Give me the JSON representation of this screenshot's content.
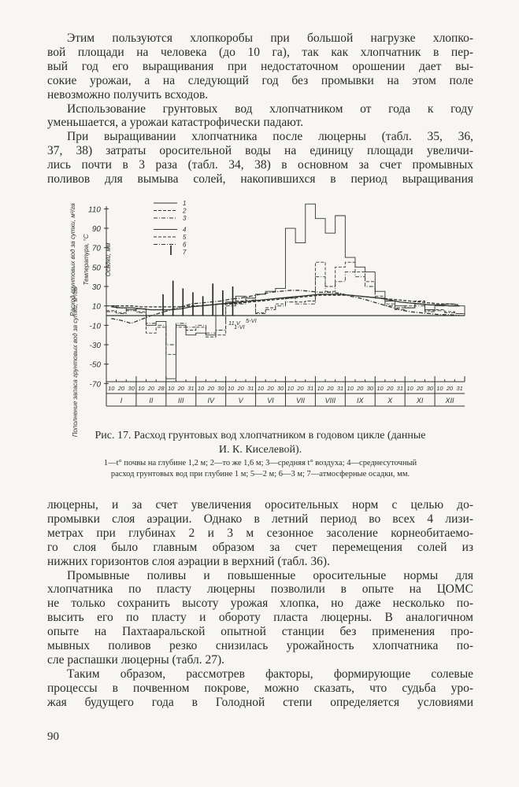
{
  "top_text": [
    {
      "t": "Этим пользуются хлопкоробы при большой  нагрузке хлопко-",
      "ind": true
    },
    {
      "t": "вой площади на человека (до 10 га), так как хлопчатник в пер-"
    },
    {
      "t": "вый год его выращивания при недостаточном орошении дает вы-"
    },
    {
      "t": "сокие урожаи, а на следующий год без промывки на этом  поле"
    },
    {
      "t": "невозможно получить всходов.",
      "last": true
    },
    {
      "t": "Использование грунтовых вод хлопчатником от года к году",
      "ind": true
    },
    {
      "t": "уменьшается, а урожаи катастрофически падают.",
      "last": true
    },
    {
      "t": "При выращивании хлопчатника после люцерны (табл. 35, 36,",
      "ind": true
    },
    {
      "t": "37, 38) затраты оросительной воды на единицу площади увеличи-"
    },
    {
      "t": "лись почти в 3 раза (табл. 34, 38) в основном за счет промывных"
    },
    {
      "t": "поливов для вымыва солей, накопившихся в период выращивания"
    }
  ],
  "bottom_text": [
    {
      "t": "люцерны, и за счет увеличения оросительных норм с целью  до-"
    },
    {
      "t": "промывки слоя аэрации. Однако в летний период во всех 4 лизи-"
    },
    {
      "t": "метрах при глубинах 2 и 3 м сезонное засоление корнеобитаемо-"
    },
    {
      "t": "го слоя было главным образом за счет перемещения солей  из"
    },
    {
      "t": "нижних горизонтов слоя аэрации в верхний (табл. 36).",
      "last": true
    },
    {
      "t": "Промывные поливы и повышенные оросительные нормы для",
      "ind": true
    },
    {
      "t": "хлопчатника по пласту люцерны позволили в опыте на ЦОМС"
    },
    {
      "t": "не только сохранить высоту урожая хлопка, но даже несколько по-"
    },
    {
      "t": "высить его по пласту и обороту пласта люцерны. В аналогичном"
    },
    {
      "t": "опыте на Пахтааральской опытной станции без применения про-"
    },
    {
      "t": "мывных поливов резко снизилась урожайность хлопчатника по-"
    },
    {
      "t": "сле распашки люцерны (табл. 27).",
      "last": true
    },
    {
      "t": "Таким образом, рассмотрев факторы, формирующие солевые",
      "ind": true
    },
    {
      "t": "процессы в почвенном покрове, можно сказать, что судьба уро-"
    },
    {
      "t": "жая будущего года в Голодной степи определяется   условиями"
    }
  ],
  "caption": {
    "title1": "Рис. 17. Расход грунтовых вод хлопчатником в годовом  цикле (данные",
    "title2": "И. К. Киселевой).",
    "legend1": "1—t° почвы на глубине 1,2 м; 2—то же 1,6 м; 3—средняя t° воздуха; 4—среднесуточный",
    "legend2": "расход грунтовых  вод при глубине 1  м; 5—2 м; 6—3 м; 7—атмосферные осадки, мм."
  },
  "page_number": "90",
  "chart_data": {
    "type": "line",
    "ylabels": [
      "Расход грунтовых вод за сутки, м³/га",
      "Температура, °C",
      "Осадки, мм",
      "Пополнение запаса грунтовых вод за сутки, м³/га"
    ],
    "yticks": [
      110,
      90,
      70,
      50,
      30,
      10,
      -10,
      -30,
      -50,
      -70
    ],
    "ylim": [
      -70,
      120
    ],
    "months": [
      "I",
      "II",
      "III",
      "IV",
      "V",
      "VI",
      "VII",
      "VIII",
      "IX",
      "X",
      "XI",
      "XII"
    ],
    "decade_labels": [
      [
        "10",
        "20",
        "30"
      ],
      [
        "10",
        "20",
        "28"
      ],
      [
        "10",
        "20",
        "31"
      ],
      [
        "10",
        "20",
        "30"
      ],
      [
        "10",
        "20",
        "31"
      ],
      [
        "10",
        "20",
        "30"
      ],
      [
        "10",
        "20",
        "31"
      ],
      [
        "10",
        "20",
        "31"
      ],
      [
        "10",
        "20",
        "30"
      ],
      [
        "10",
        "20",
        "31"
      ],
      [
        "10",
        "20",
        "30"
      ],
      [
        "10",
        "20",
        "31"
      ]
    ],
    "legend": [
      "1",
      "2",
      "3",
      "4",
      "5",
      "6",
      "7"
    ],
    "annotations": [
      "11.V",
      "1-VI",
      "5-VI"
    ],
    "series": [
      {
        "name": "1",
        "style": "solid-smooth",
        "values": [
          9,
          8,
          8,
          7,
          6,
          6,
          6,
          7,
          9,
          10,
          11,
          12,
          13,
          14,
          15,
          16,
          17,
          18,
          19,
          20,
          21,
          22,
          22,
          22,
          21,
          20,
          19,
          18,
          16,
          14,
          13,
          12,
          11,
          11,
          10,
          10
        ]
      },
      {
        "name": "2",
        "style": "dashed-smooth",
        "values": [
          10,
          10,
          10,
          9,
          9,
          9,
          9,
          9,
          10,
          10,
          11,
          12,
          12,
          13,
          14,
          15,
          16,
          17,
          18,
          19,
          20,
          21,
          21,
          21,
          21,
          20,
          19,
          18,
          17,
          16,
          15,
          14,
          13,
          12,
          12,
          11
        ]
      },
      {
        "name": "3",
        "style": "dashdot-smooth",
        "values": [
          -3,
          -5,
          -8,
          -4,
          0,
          3,
          6,
          9,
          12,
          13,
          14,
          15,
          17,
          18,
          20,
          22,
          24,
          25,
          26,
          26,
          25,
          24,
          24,
          23,
          20,
          18,
          15,
          12,
          9,
          6,
          4,
          3,
          2,
          1,
          1,
          0
        ]
      },
      {
        "name": "4",
        "style": "solid-step",
        "values": [
          10,
          8,
          6,
          7,
          -10,
          -6,
          -65,
          -10,
          -20,
          -18,
          -20,
          12,
          14,
          20,
          18,
          22,
          25,
          28,
          90,
          75,
          115,
          100,
          85,
          103,
          60,
          50,
          45,
          25,
          15,
          10,
          8,
          12,
          6,
          10,
          12,
          10
        ]
      },
      {
        "name": "5",
        "style": "dashed-step",
        "values": [
          5,
          3,
          6,
          4,
          -18,
          -12,
          -40,
          -12,
          -15,
          -12,
          -22,
          -20,
          12,
          15,
          18,
          3,
          8,
          12,
          18,
          14,
          15,
          55,
          30,
          50,
          55,
          45,
          35,
          20,
          12,
          8,
          10,
          15,
          5,
          6,
          4,
          2
        ]
      },
      {
        "name": "6",
        "style": "dashdot-step",
        "values": [
          4,
          2,
          5,
          3,
          -8,
          -10,
          -30,
          -8,
          -12,
          -10,
          -18,
          -15,
          10,
          12,
          16,
          2,
          6,
          10,
          14,
          12,
          12,
          40,
          25,
          35,
          45,
          40,
          30,
          18,
          10,
          6,
          8,
          10,
          4,
          5,
          3,
          2
        ]
      }
    ],
    "precipitation": [
      0,
      0,
      0,
      0,
      0,
      22,
      36,
      28,
      24,
      20,
      33,
      26,
      30,
      0,
      0,
      0,
      0,
      0,
      0,
      0,
      0,
      0,
      0,
      0,
      0,
      0,
      0,
      0,
      0,
      0,
      0,
      0,
      0,
      0,
      0,
      0
    ]
  }
}
